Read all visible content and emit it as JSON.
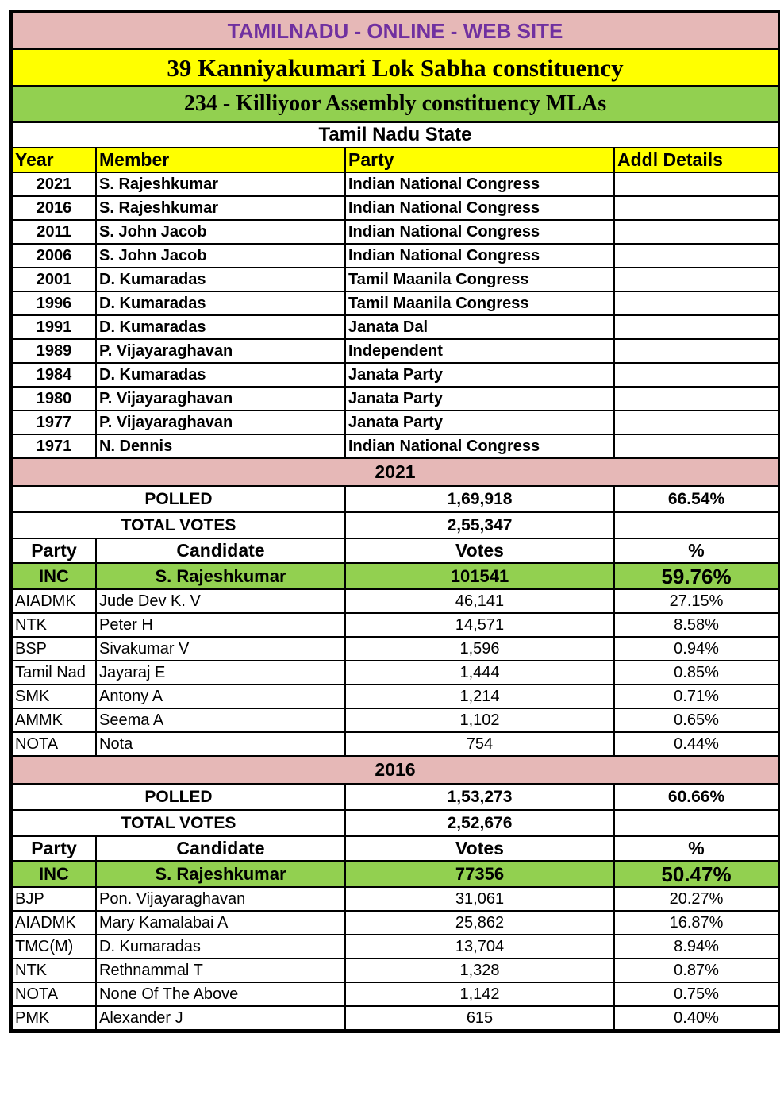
{
  "site_title": "TAMILNADU - ONLINE - WEB SITE",
  "lok_sabha": "39 Kanniyakumari Lok Sabha constituency",
  "assembly": "234 - Killiyoor Assembly constituency MLAs",
  "state": "Tamil Nadu State",
  "mla_headers": [
    "Year",
    "Member",
    "Party",
    "Addl Details"
  ],
  "mlas": [
    [
      "2021",
      "S. Rajeshkumar",
      "Indian National Congress",
      ""
    ],
    [
      "2016",
      "S. Rajeshkumar",
      "Indian National Congress",
      ""
    ],
    [
      "2011",
      "S. John Jacob",
      "Indian National Congress",
      ""
    ],
    [
      "2006",
      "S. John Jacob",
      "Indian National Congress",
      ""
    ],
    [
      "2001",
      "D. Kumaradas",
      "Tamil Maanila Congress",
      ""
    ],
    [
      "1996",
      "D. Kumaradas",
      "Tamil Maanila Congress",
      ""
    ],
    [
      "1991",
      "D. Kumaradas",
      "Janata Dal",
      ""
    ],
    [
      "1989",
      "P. Vijayaraghavan",
      "Independent",
      ""
    ],
    [
      "1984",
      "D. Kumaradas",
      "Janata Party",
      ""
    ],
    [
      "1980",
      "P. Vijayaraghavan",
      "Janata Party",
      ""
    ],
    [
      "1977",
      "P. Vijayaraghavan",
      "Janata Party",
      ""
    ],
    [
      "1971",
      "N. Dennis",
      "Indian National Congress",
      ""
    ]
  ],
  "result_headers": [
    "Party",
    "Candidate",
    "Votes",
    "%"
  ],
  "polled_label": "POLLED",
  "total_label": "TOTAL VOTES",
  "elections": [
    {
      "year": "2021",
      "polled": "1,69,918",
      "polled_pct": "66.54%",
      "total": "2,55,347",
      "winner": [
        "INC",
        "S. Rajeshkumar",
        "101541",
        "59.76%"
      ],
      "others": [
        [
          "AIADMK",
          "Jude Dev K. V",
          "46,141",
          "27.15%"
        ],
        [
          "NTK",
          "Peter H",
          "14,571",
          "8.58%"
        ],
        [
          "BSP",
          "Sivakumar V",
          "1,596",
          "0.94%"
        ],
        [
          "Tamil Nad",
          "Jayaraj E",
          "1,444",
          "0.85%"
        ],
        [
          "SMK",
          "Antony A",
          "1,214",
          "0.71%"
        ],
        [
          "AMMK",
          "Seema A",
          "1,102",
          "0.65%"
        ],
        [
          "NOTA",
          "Nota",
          "754",
          "0.44%"
        ]
      ]
    },
    {
      "year": "2016",
      "polled": "1,53,273",
      "polled_pct": "60.66%",
      "total": "2,52,676",
      "winner": [
        "INC",
        "S. Rajeshkumar",
        "77356",
        "50.47%"
      ],
      "others": [
        [
          "BJP",
          "Pon. Vijayaraghavan",
          "31,061",
          "20.27%"
        ],
        [
          "AIADMK",
          "Mary Kamalabai A",
          "25,862",
          "16.87%"
        ],
        [
          "TMC(M)",
          "D. Kumaradas",
          "13,704",
          "8.94%"
        ],
        [
          "NTK",
          "Rethnammal T",
          "1,328",
          "0.87%"
        ],
        [
          "NOTA",
          "None Of The Above",
          "1,142",
          "0.75%"
        ],
        [
          "PMK",
          "Alexander J",
          "615",
          "0.40%"
        ]
      ]
    }
  ]
}
